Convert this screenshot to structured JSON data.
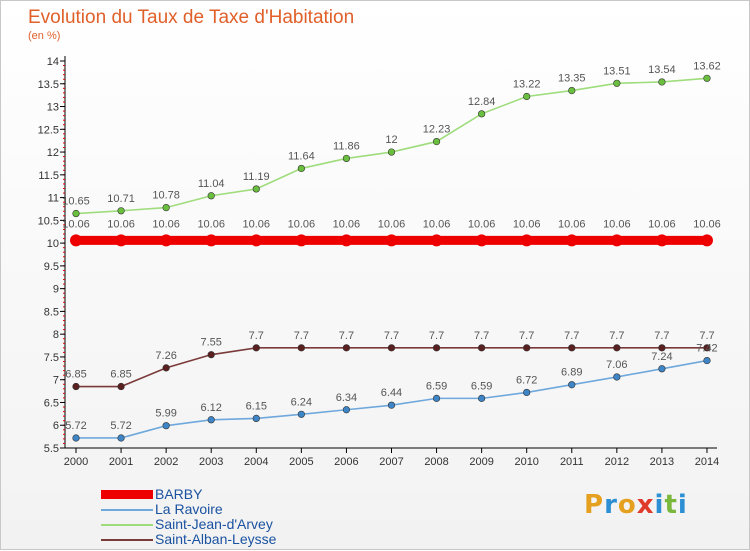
{
  "title": "Evolution du Taux de Taxe d'Habitation",
  "unit": "(en %)",
  "logo": {
    "text": "Proxiti",
    "colors": [
      "#e6a020",
      "#2c8fd4",
      "#e6a020",
      "#e03a2a",
      "#2c8fd4",
      "#7ab83c",
      "#2c8fd4"
    ]
  },
  "chart_data": {
    "type": "line",
    "title": "Evolution du Taux de Taxe d'Habitation",
    "ylabel": "(en %)",
    "xlabel": "",
    "x": [
      "2000",
      "2001",
      "2002",
      "2003",
      "2004",
      "2005",
      "2006",
      "2007",
      "2008",
      "2009",
      "2010",
      "2011",
      "2012",
      "2013",
      "2014"
    ],
    "ylim": [
      5.5,
      14
    ],
    "yticks": [
      "5.5",
      "6",
      "6.5",
      "7",
      "7.5",
      "8",
      "8.5",
      "9",
      "9.5",
      "10",
      "10.5",
      "11",
      "11.5",
      "12",
      "12.5",
      "13",
      "13.5",
      "14"
    ],
    "grid": false,
    "legend_position": "bottom-left",
    "series": [
      {
        "name": "BARBY",
        "color": "#ee0000",
        "line_width": "thick",
        "values": [
          10.06,
          10.06,
          10.06,
          10.06,
          10.06,
          10.06,
          10.06,
          10.06,
          10.06,
          10.06,
          10.06,
          10.06,
          10.06,
          10.06,
          10.06
        ],
        "labels": [
          "10.06",
          "10.06",
          "10.06",
          "10.06",
          "10.06",
          "10.06",
          "10.06",
          "10.06",
          "10.06",
          "10.06",
          "10.06",
          "10.06",
          "10.06",
          "10.06",
          "10.06"
        ]
      },
      {
        "name": "La Ravoire",
        "color": "#6fa8dc",
        "marker_color": "#3d85c6",
        "line_width": "thin",
        "values": [
          5.72,
          5.72,
          5.99,
          6.12,
          6.15,
          6.24,
          6.34,
          6.44,
          6.59,
          6.59,
          6.72,
          6.89,
          7.06,
          7.24,
          7.42
        ],
        "labels": [
          "5.72",
          "5.72",
          "5.99",
          "6.12",
          "6.15",
          "6.24",
          "6.34",
          "6.44",
          "6.59",
          "6.59",
          "6.72",
          "6.89",
          "7.06",
          "7.24",
          "7.42"
        ]
      },
      {
        "name": "Saint-Jean-d'Arvey",
        "color": "#9fdc7c",
        "marker_color": "#6abf3e",
        "line_width": "thin",
        "values": [
          10.65,
          10.71,
          10.78,
          11.04,
          11.19,
          11.64,
          11.86,
          12,
          12.23,
          12.84,
          13.22,
          13.35,
          13.51,
          13.54,
          13.62
        ],
        "labels": [
          "10.65",
          "10.71",
          "10.78",
          "11.04",
          "11.19",
          "11.64",
          "11.86",
          "12",
          "12.23",
          "12.84",
          "13.22",
          "13.35",
          "13.51",
          "13.54",
          "13.62"
        ]
      },
      {
        "name": "Saint-Alban-Leysse",
        "color": "#7a3a3a",
        "marker_color": "#5a1f1f",
        "line_width": "thin",
        "values": [
          6.85,
          6.85,
          7.26,
          7.55,
          7.7,
          7.7,
          7.7,
          7.7,
          7.7,
          7.7,
          7.7,
          7.7,
          7.7,
          7.7,
          7.7
        ],
        "labels": [
          "6.85",
          "6.85",
          "7.26",
          "7.55",
          "7.7",
          "7.7",
          "7.7",
          "7.7",
          "7.7",
          "7.7",
          "7.7",
          "7.7",
          "7.7",
          "7.7",
          "7.7"
        ]
      }
    ]
  }
}
